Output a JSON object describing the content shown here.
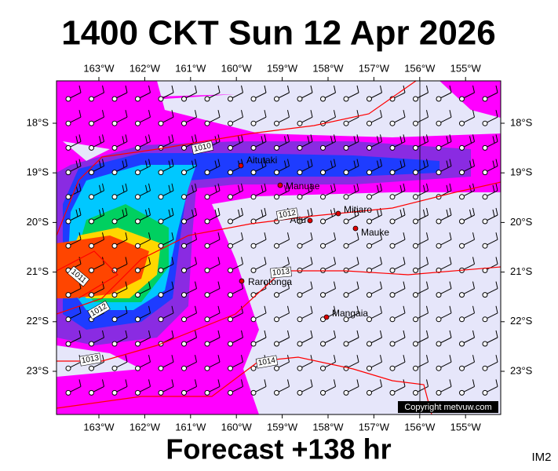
{
  "header": {
    "title": "1400 CKT Sun 12 Apr 2026"
  },
  "map": {
    "lon_labels": [
      "163°W",
      "162°W",
      "161°W",
      "160°W",
      "159°W",
      "158°W",
      "157°W",
      "156°W",
      "155°W"
    ],
    "lat_labels": [
      "18°S",
      "19°S",
      "20°S",
      "21°S",
      "22°S",
      "23°S"
    ],
    "places": [
      {
        "label": "Aitutaki"
      },
      {
        "label": "Manuae"
      },
      {
        "label": "Mitiaro"
      },
      {
        "label": "Atiu"
      },
      {
        "label": "Mauke"
      },
      {
        "label": "Rarotonga"
      },
      {
        "label": "Mangaia"
      }
    ],
    "isobar_labels": [
      "1010",
      "1012",
      "1013",
      "1011",
      "1012",
      "1013",
      "1014"
    ],
    "copyright": "Copyright metvuw.com"
  },
  "footer": {
    "forecast": "Forecast +138 hr",
    "code": "IM2"
  }
}
